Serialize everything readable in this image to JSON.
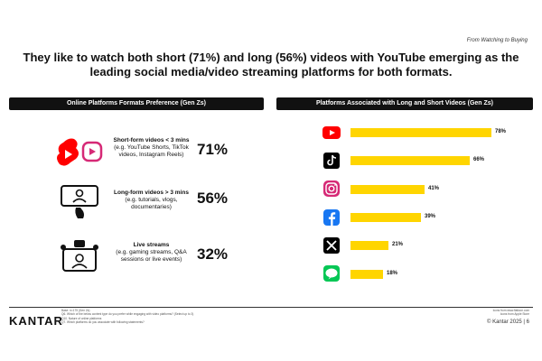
{
  "kicker": "From Watching to Buying",
  "headline": "They like to watch both short (71%) and long (56%) videos with YouTube emerging as the leading social media/video streaming platforms for both formats.",
  "panels": {
    "left_title": "Online Platforms Formats Preference (Gen Zs)",
    "right_title": "Platforms Associated with Long and Short Videos (Gen Zs)"
  },
  "formats": [
    {
      "title": "Short-form videos < 3 mins",
      "desc": "(e.g. YouTube Shorts, TikTok videos, Instagram Reels)",
      "pct": "71%",
      "icon": "shorts-reels-icon"
    },
    {
      "title": "Long-form videos > 3 mins",
      "desc": "(e.g. tutorials, vlogs, documentaries)",
      "pct": "56%",
      "icon": "video-phone-icon"
    },
    {
      "title": "Live streams",
      "desc": "(e.g. gaming streams, Q&A sessions or live events)",
      "pct": "32%",
      "icon": "live-stream-icon"
    }
  ],
  "chart_data": {
    "type": "bar",
    "orientation": "horizontal",
    "title": "Platforms Associated with Long and Short Videos (Gen Zs)",
    "categories": [
      "YouTube",
      "TikTok",
      "Instagram",
      "Facebook",
      "X",
      "LINE"
    ],
    "values": [
      78,
      66,
      41,
      39,
      21,
      18
    ],
    "value_labels": [
      "78%",
      "66%",
      "41%",
      "39%",
      "21%",
      "18%"
    ],
    "xlim": [
      0,
      100
    ],
    "grid": false,
    "legend": "none",
    "bar_color": "#FFD500"
  },
  "platform_logos": [
    {
      "icon": "youtube-icon",
      "bg": "#ff0000",
      "fg": "#ffffff"
    },
    {
      "icon": "tiktok-icon",
      "bg": "#000000",
      "fg": "#ffffff"
    },
    {
      "icon": "instagram-icon",
      "bg": "#d62976",
      "fg": "#ffffff"
    },
    {
      "icon": "facebook-icon",
      "bg": "#1877f2",
      "fg": "#ffffff"
    },
    {
      "icon": "x-icon",
      "bg": "#000000",
      "fg": "#ffffff"
    },
    {
      "icon": "line-icon",
      "bg": "#06c755",
      "fg": "#ffffff"
    }
  ],
  "footer": {
    "brand": "KANTAR",
    "notes": [
      "Base: n=175 (Gen Zs)",
      "Q6. Which of the below content type do you prefer while engaging with video platforms? (Select up to 3)",
      "Q10. Nature of online platforms",
      "Q7. Which platforms do you associate with following statements?"
    ],
    "source_notes": [
      "Icons from www.flaticon.com",
      "Icons from Apple Store"
    ],
    "copyright": "© Kantar 2025 | 6"
  }
}
